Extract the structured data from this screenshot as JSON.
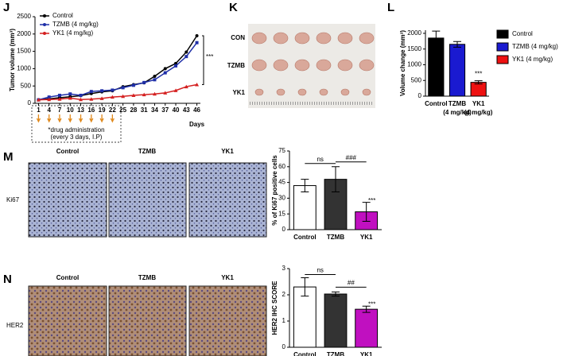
{
  "panel_labels": [
    "J",
    "K",
    "L",
    "M",
    "N"
  ],
  "tumor_image": {
    "rows": [
      "CON",
      "TZMB",
      "YK1"
    ]
  },
  "ihc": [
    {
      "marker": "Ki67",
      "columns": [
        "Control",
        "TZMB",
        "YK1"
      ]
    },
    {
      "marker": "HER2",
      "columns": [
        "Control",
        "TZMB",
        "YK1"
      ]
    }
  ],
  "chart_data": [
    {
      "type": "line",
      "y_label": "Tumor volume (mm³)",
      "x_label": "Days",
      "x": [
        1,
        4,
        7,
        10,
        13,
        16,
        19,
        22,
        25,
        28,
        31,
        34,
        37,
        40,
        43,
        46
      ],
      "xlim": [
        0,
        47
      ],
      "xticks": [
        1,
        4,
        7,
        10,
        13,
        16,
        19,
        22,
        25,
        28,
        31,
        34,
        37,
        40,
        43,
        46
      ],
      "ylim": [
        0,
        2500
      ],
      "yticks": [
        0,
        500,
        1000,
        1500,
        2000,
        2500
      ],
      "series": [
        {
          "name": "Control",
          "color": "#000000",
          "values": [
            100,
            130,
            160,
            190,
            220,
            280,
            330,
            360,
            480,
            540,
            590,
            780,
            1000,
            1150,
            1480,
            1950
          ]
        },
        {
          "name": "TZMB (4 mg/kg)",
          "color": "#1f2fa8",
          "values": [
            100,
            180,
            230,
            270,
            230,
            340,
            360,
            380,
            450,
            520,
            600,
            680,
            880,
            1080,
            1350,
            1750
          ]
        },
        {
          "name": "YK1 (4 mg/kg)",
          "color": "#d42020",
          "values": [
            100,
            110,
            120,
            150,
            110,
            120,
            140,
            180,
            200,
            230,
            250,
            270,
            300,
            370,
            480,
            540
          ]
        }
      ],
      "annotations": [
        "***",
        "*drug administration",
        "(every 3 days, I.P)"
      ]
    },
    {
      "type": "bar",
      "y_label": "Volume change (mm³)",
      "categories": [
        "Control",
        "TZMB (4 mg/kg)",
        "YK1 (4 mg/kg)"
      ],
      "values": [
        1850,
        1650,
        440
      ],
      "errors": [
        220,
        90,
        50
      ],
      "colors": [
        "#000000",
        "#1a1ad0",
        "#ee1111"
      ],
      "legend": true,
      "ylim": [
        0,
        2100
      ],
      "yticks": [
        0,
        500,
        1000,
        1500,
        2000
      ],
      "annotations": [
        "***"
      ]
    },
    {
      "type": "bar",
      "y_label": "% of Ki67 positive cells",
      "categories": [
        "Control",
        "TZMB",
        "YK1"
      ],
      "values": [
        42,
        48,
        17
      ],
      "errors": [
        6,
        12,
        9
      ],
      "colors": [
        "#ffffff",
        "#333333",
        "#c010c0"
      ],
      "legend": false,
      "ylim": [
        0,
        75
      ],
      "yticks": [
        0,
        15,
        30,
        45,
        60,
        75
      ],
      "annotations": [
        "ns",
        "###",
        "***"
      ]
    },
    {
      "type": "bar",
      "y_label": "HER2 IHC SCORE",
      "categories": [
        "Control",
        "TZMB",
        "YK1"
      ],
      "values": [
        2.3,
        2.03,
        1.45
      ],
      "errors": [
        0.35,
        0.08,
        0.12
      ],
      "colors": [
        "#ffffff",
        "#333333",
        "#c010c0"
      ],
      "legend": false,
      "ylim": [
        0,
        3
      ],
      "yticks": [
        0,
        1,
        2,
        3
      ],
      "annotations": [
        "ns",
        "##",
        "***"
      ]
    }
  ]
}
